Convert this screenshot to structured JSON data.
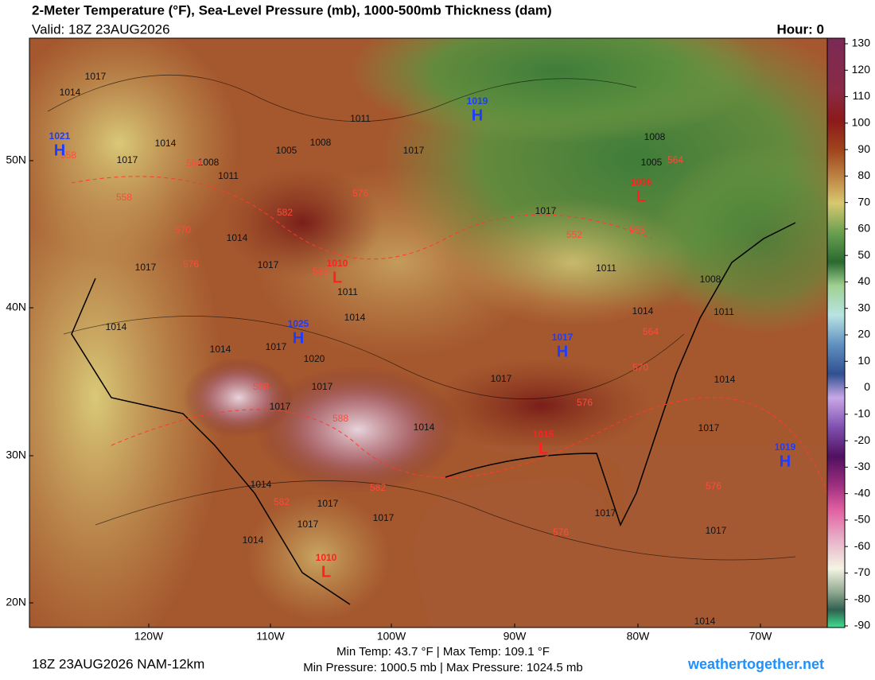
{
  "header": {
    "title": "2-Meter Temperature (°F), Sea-Level Pressure (mb), 1000-500mb Thickness (dam)",
    "valid": "Valid: 18Z 23AUG2026",
    "hour": "Hour: 0"
  },
  "map": {
    "lat_labels": [
      "50N",
      "40N",
      "30N",
      "20N"
    ],
    "lon_labels": [
      "120W",
      "110W",
      "100W",
      "90W",
      "80W",
      "70W"
    ],
    "pressure_centers": [
      {
        "type": "H",
        "value": "1021"
      },
      {
        "type": "H",
        "value": "1019"
      },
      {
        "type": "L",
        "value": "1006"
      },
      {
        "type": "L",
        "value": "1010"
      },
      {
        "type": "H",
        "value": "1025"
      },
      {
        "type": "H",
        "value": "1017"
      },
      {
        "type": "L",
        "value": "1015"
      },
      {
        "type": "H",
        "value": "1019"
      },
      {
        "type": "L",
        "value": "1010"
      }
    ],
    "isobar_labels": [
      "1014",
      "1017",
      "1011",
      "1008",
      "1005",
      "1017",
      "1008",
      "1011",
      "1014",
      "1017",
      "1014",
      "1017",
      "1017",
      "1011",
      "1014",
      "1014",
      "1014",
      "1017",
      "1020",
      "1017",
      "1017",
      "1014",
      "1017",
      "1014",
      "1011",
      "1008",
      "1011",
      "1017",
      "1005",
      "1008",
      "1014",
      "1017",
      "1014",
      "1017",
      "1017",
      "1017",
      "1014",
      "1017",
      "1017",
      "1014"
    ],
    "thickness_labels": [
      "558",
      "564",
      "558",
      "570",
      "576",
      "582",
      "576",
      "588",
      "588",
      "588",
      "552",
      "558",
      "564",
      "564",
      "570",
      "576",
      "576",
      "576",
      "582",
      "582"
    ]
  },
  "colorbar": {
    "ticks": [
      130,
      120,
      110,
      100,
      90,
      80,
      70,
      60,
      50,
      40,
      30,
      20,
      10,
      0,
      -10,
      -20,
      -30,
      -40,
      -50,
      -60,
      -70,
      -80,
      -90
    ]
  },
  "footer": {
    "run": "18Z 23AUG2026 NAM-12km",
    "temps": "Min Temp:  43.7 °F | Max Temp: 109.1 °F",
    "pressure": "Min Pressure: 1000.5 mb | Max Pressure: 1024.5 mb",
    "site": "weathertogether.net"
  }
}
